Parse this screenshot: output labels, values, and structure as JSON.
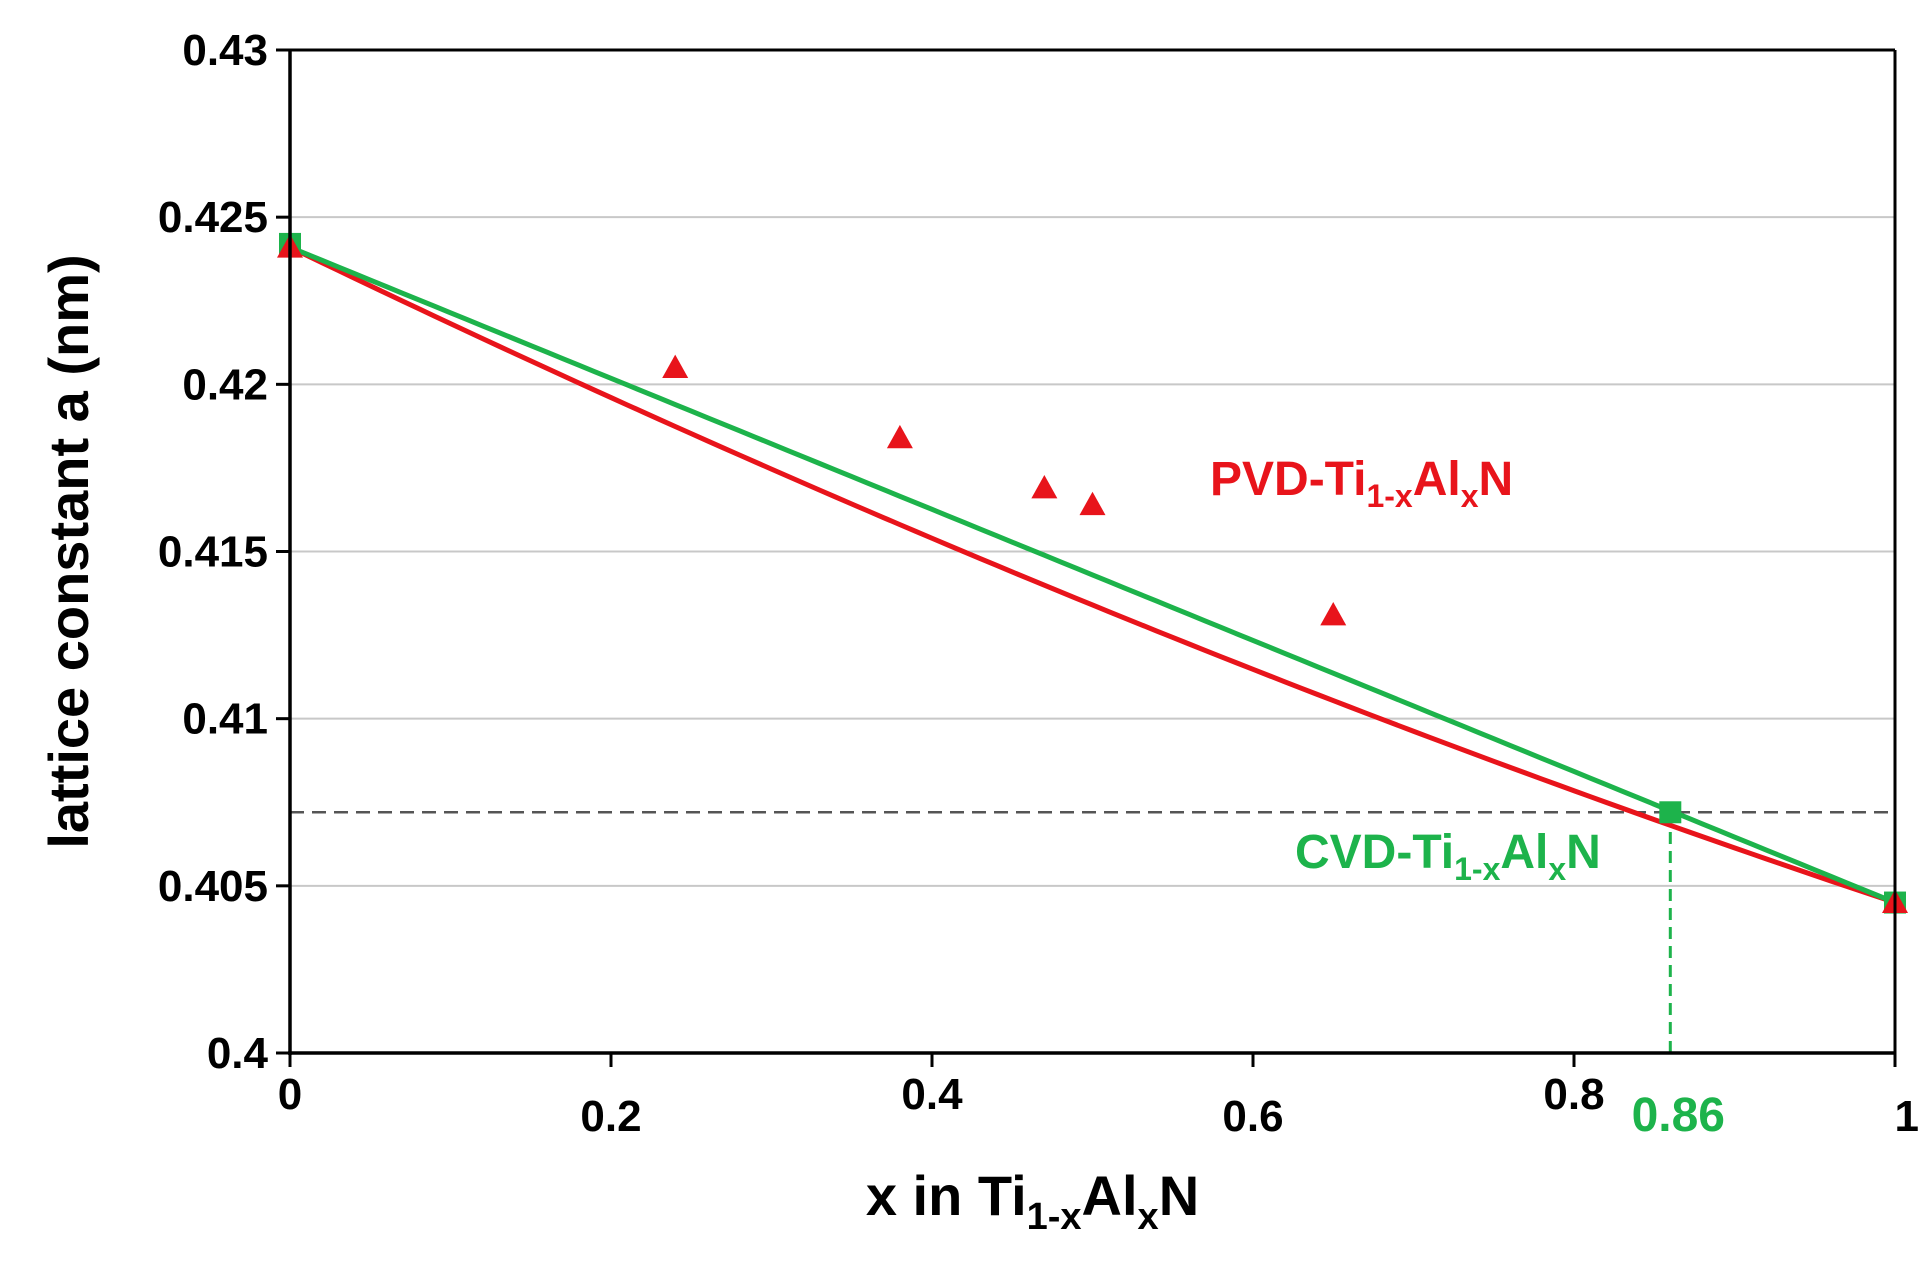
{
  "chart_data": {
    "type": "line",
    "title": "",
    "xlabel": {
      "prefix": "x in Ti",
      "sub1": "1-x",
      "mid": "Al",
      "sub2": "x",
      "suffix": "N"
    },
    "ylabel": "lattice constant a (nm)",
    "xlim": [
      0,
      1
    ],
    "ylim": [
      0.4,
      0.43
    ],
    "x_ticks": [
      0,
      0.2,
      0.4,
      0.6,
      0.8,
      1
    ],
    "x_tick_labels": [
      "0",
      "0.2",
      "0.4",
      "0.6",
      "0.8",
      "1"
    ],
    "y_ticks": [
      0.4,
      0.405,
      0.41,
      0.415,
      0.42,
      0.425,
      0.43
    ],
    "y_tick_labels": [
      "0.4",
      "0.405",
      "0.41",
      "0.415",
      "0.42",
      "0.425",
      "0.43"
    ],
    "grid": "horizontal",
    "series": [
      {
        "name": "PVD-Ti1-xAlxN",
        "label": {
          "prefix": "PVD-Ti",
          "sub1": "1-x",
          "mid": "Al",
          "sub2": "x",
          "suffix": "N"
        },
        "color": "#e8141b",
        "marker": "triangle",
        "points": [
          {
            "x": 0,
            "y": 0.4241
          },
          {
            "x": 0.24,
            "y": 0.4205
          },
          {
            "x": 0.38,
            "y": 0.4184
          },
          {
            "x": 0.47,
            "y": 0.4169
          },
          {
            "x": 0.5,
            "y": 0.4164
          },
          {
            "x": 0.65,
            "y": 0.4131
          },
          {
            "x": 1,
            "y": 0.4045
          }
        ],
        "fit": {
          "type": "quadratic",
          "a0": 0.4241,
          "x_end": 1,
          "y_end": 0.4045,
          "bowing": -0.0036
        }
      },
      {
        "name": "CVD-Ti1-xAlxN",
        "label": {
          "prefix": "CVD-Ti",
          "sub1": "1-x",
          "mid": "Al",
          "sub2": "x",
          "suffix": "N"
        },
        "color": "#1db34b",
        "marker": "square",
        "points": [
          {
            "x": 0,
            "y": 0.4242
          },
          {
            "x": 0.86,
            "y": 0.4072
          },
          {
            "x": 1,
            "y": 0.4045
          }
        ],
        "fit": {
          "type": "linear",
          "y0": 0.4241,
          "y1": 0.4045
        }
      }
    ],
    "annotations": [
      {
        "type": "hline",
        "y": 0.4072,
        "style": "dashed",
        "color": "#555555"
      },
      {
        "type": "vline",
        "x": 0.86,
        "from_y": 0.4,
        "to_y": 0.4072,
        "style": "dashed",
        "color": "#1db34b"
      },
      {
        "type": "label",
        "text": "0.86",
        "x": 0.86,
        "color": "#1db34b"
      }
    ]
  }
}
